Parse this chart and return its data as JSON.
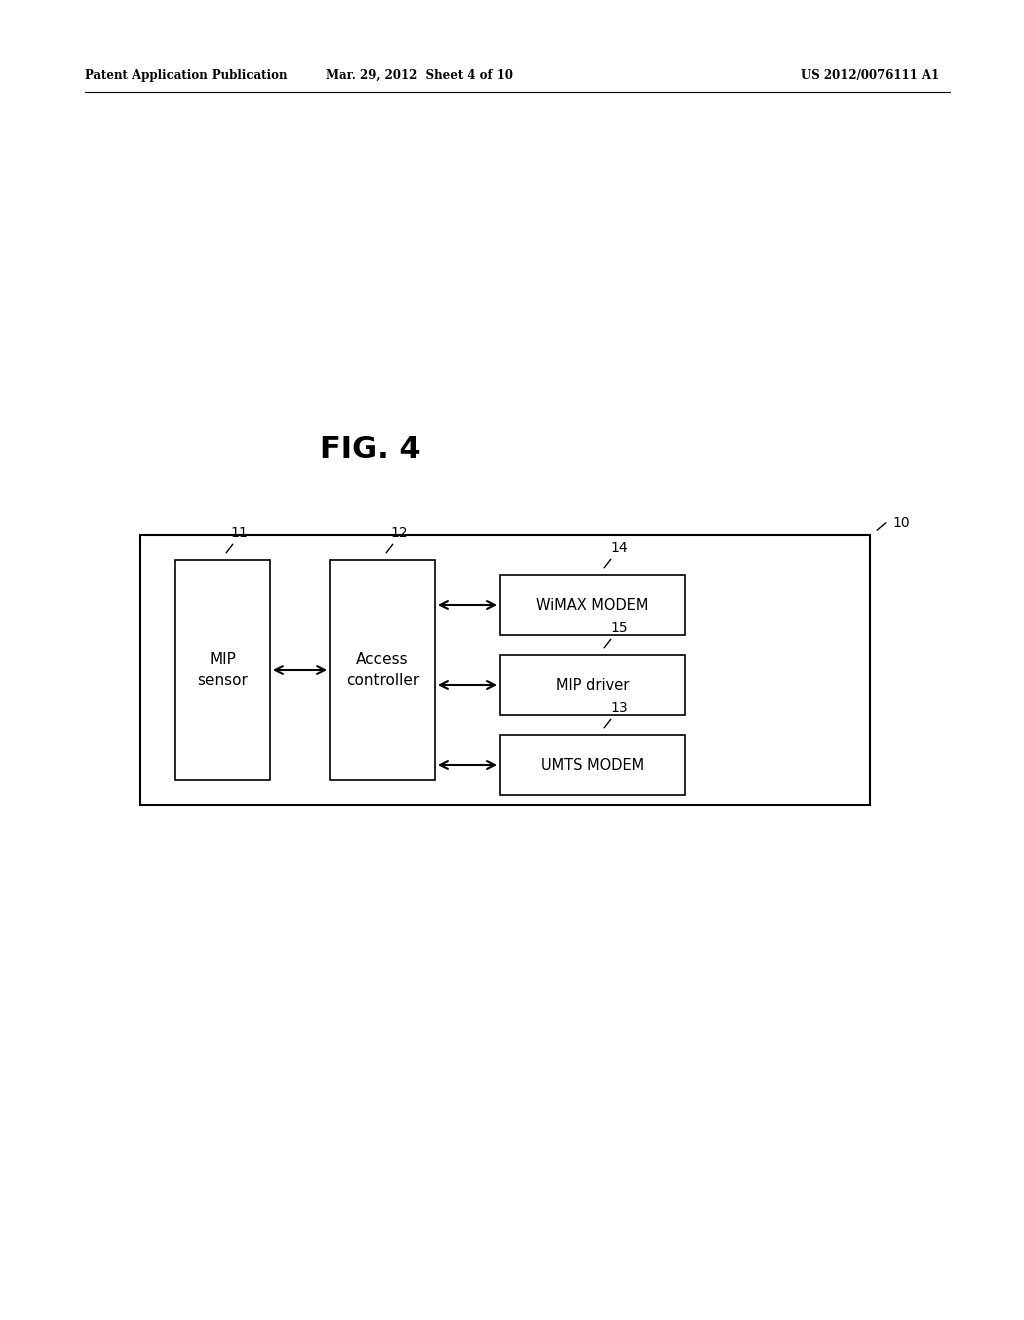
{
  "background_color": "#ffffff",
  "header_left": "Patent Application Publication",
  "header_mid": "Mar. 29, 2012  Sheet 4 of 10",
  "header_right": "US 2012/0076111 A1",
  "fig_label": "FIG. 4",
  "outer_box_label": "10",
  "mip_sensor_label": "11",
  "mip_sensor_text": "MIP\nsensor",
  "access_ctrl_label": "12",
  "access_ctrl_text": "Access\ncontroller",
  "wimax_label": "14",
  "wimax_text": "WiMAX MODEM",
  "mip_driver_label": "15",
  "mip_driver_text": "MIP driver",
  "umts_label": "13",
  "umts_text": "UMTS MODEM",
  "text_color": "#000000",
  "box_edge_color": "#000000",
  "arrow_color": "#000000"
}
